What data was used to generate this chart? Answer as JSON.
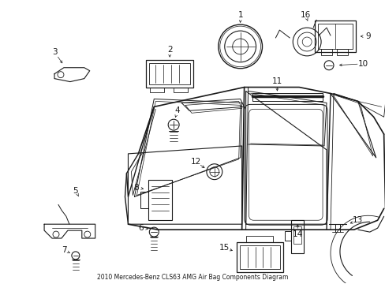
{
  "title": "2010 Mercedes-Benz CLS63 AMG Air Bag Components Diagram",
  "background_color": "#ffffff",
  "line_color": "#1a1a1a",
  "fig_width": 4.89,
  "fig_height": 3.6,
  "dpi": 100
}
